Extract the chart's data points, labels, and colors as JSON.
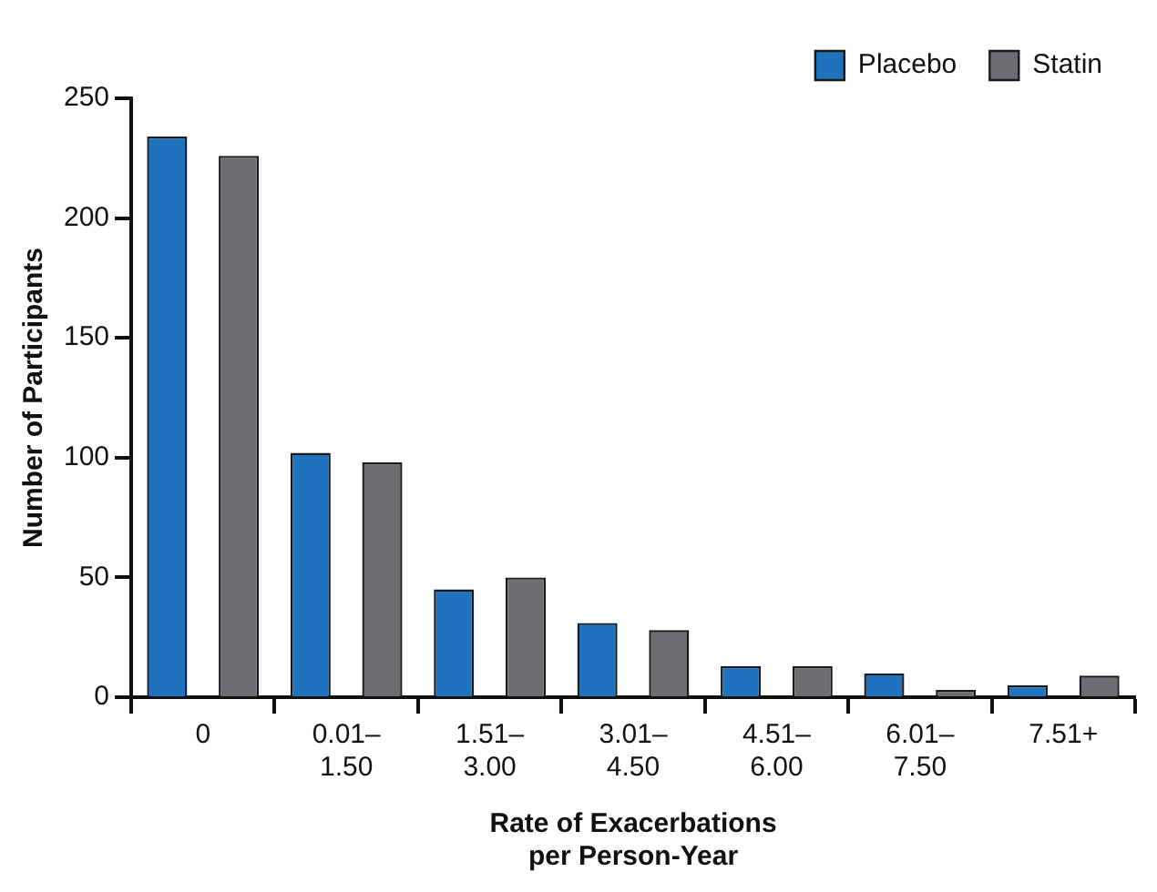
{
  "chart_data": {
    "type": "bar",
    "xlabel": "Rate of Exacerbations per Person-Year",
    "ylabel": "Number of Participants",
    "categories": [
      "0",
      "0.01–1.50",
      "1.51–3.00",
      "3.01–4.50",
      "4.51–6.00",
      "6.01–7.50",
      "7.51+"
    ],
    "series": [
      {
        "name": "Placebo",
        "color": "#1f73be",
        "values": [
          234,
          102,
          45,
          31,
          13,
          10,
          5
        ]
      },
      {
        "name": "Statin",
        "color": "#6d6e71",
        "values": [
          226,
          98,
          50,
          28,
          13,
          3,
          9
        ]
      }
    ],
    "ylim": [
      0,
      250
    ],
    "yticks": [
      0,
      50,
      100,
      150,
      200,
      250
    ],
    "grid": false,
    "legend": "top right"
  }
}
